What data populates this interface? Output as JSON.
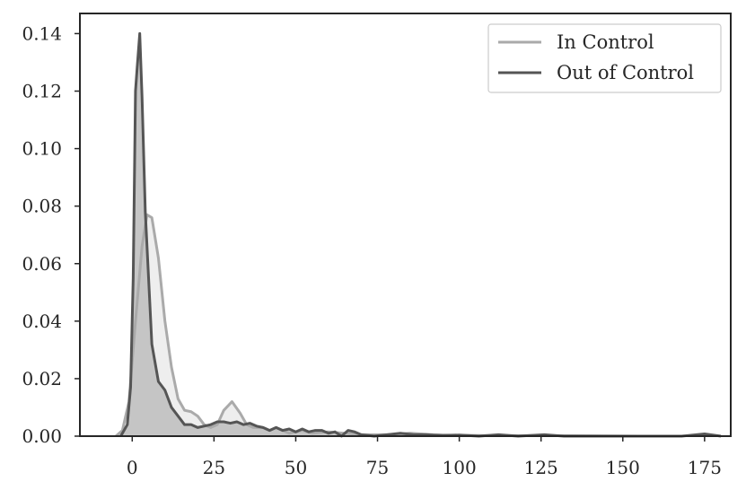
{
  "chart_data": {
    "type": "area",
    "title": "",
    "xlabel": "",
    "ylabel": "",
    "xlim": [
      -16,
      183
    ],
    "ylim": [
      0,
      0.147
    ],
    "x_ticks": [
      0,
      25,
      50,
      75,
      100,
      125,
      150,
      175
    ],
    "x_tick_labels": [
      "0",
      "25",
      "50",
      "75",
      "100",
      "125",
      "150",
      "175"
    ],
    "y_ticks": [
      0.0,
      0.02,
      0.04,
      0.06,
      0.08,
      0.1,
      0.12,
      0.14
    ],
    "y_tick_labels": [
      "0.00",
      "0.02",
      "0.04",
      "0.06",
      "0.08",
      "0.10",
      "0.12",
      "0.14"
    ],
    "grid": false,
    "legend_position": "top-right",
    "series": [
      {
        "name": "In Control",
        "color": "#aaaaaa",
        "fill": "#ebebeb",
        "points": [
          [
            -5,
            0.0
          ],
          [
            -3,
            0.002
          ],
          [
            -1,
            0.012
          ],
          [
            1,
            0.04
          ],
          [
            3,
            0.066
          ],
          [
            4.5,
            0.077
          ],
          [
            6,
            0.076
          ],
          [
            8,
            0.062
          ],
          [
            10,
            0.04
          ],
          [
            12,
            0.024
          ],
          [
            14,
            0.013
          ],
          [
            16,
            0.009
          ],
          [
            18,
            0.0085
          ],
          [
            20,
            0.007
          ],
          [
            22,
            0.004
          ],
          [
            24,
            0.003
          ],
          [
            26,
            0.004
          ],
          [
            28,
            0.009
          ],
          [
            30.5,
            0.012
          ],
          [
            33,
            0.008
          ],
          [
            35,
            0.004
          ],
          [
            37,
            0.003
          ],
          [
            40,
            0.003
          ],
          [
            42,
            0.002
          ],
          [
            44,
            0.003
          ],
          [
            46,
            0.002
          ],
          [
            48,
            0.001
          ],
          [
            52,
            0.002
          ],
          [
            55,
            0.001
          ],
          [
            60,
            0.0015
          ],
          [
            65,
            0.001
          ],
          [
            70,
            0.0005
          ],
          [
            78,
            0.0005
          ],
          [
            85,
            0.001
          ],
          [
            92,
            0.0005
          ],
          [
            100,
            0.0003
          ],
          [
            110,
            0.0002
          ],
          [
            125,
            0.0002
          ],
          [
            140,
            0.0001
          ],
          [
            155,
            0.0
          ],
          [
            165,
            0.0
          ]
        ]
      },
      {
        "name": "Out of Control",
        "color": "#555555",
        "fill": "#c0c0c0",
        "points": [
          [
            -3.5,
            0.0
          ],
          [
            -1.5,
            0.004
          ],
          [
            -0.5,
            0.017
          ],
          [
            0.3,
            0.055
          ],
          [
            1,
            0.12
          ],
          [
            1.5,
            0.128
          ],
          [
            2.3,
            0.14
          ],
          [
            3,
            0.118
          ],
          [
            4,
            0.078
          ],
          [
            5,
            0.055
          ],
          [
            6,
            0.032
          ],
          [
            8,
            0.019
          ],
          [
            10,
            0.016
          ],
          [
            12,
            0.01
          ],
          [
            14,
            0.007
          ],
          [
            16,
            0.004
          ],
          [
            18,
            0.004
          ],
          [
            20,
            0.003
          ],
          [
            22,
            0.0035
          ],
          [
            24,
            0.004
          ],
          [
            26,
            0.005
          ],
          [
            28,
            0.005
          ],
          [
            30,
            0.0045
          ],
          [
            32,
            0.005
          ],
          [
            34,
            0.004
          ],
          [
            36,
            0.0045
          ],
          [
            38,
            0.0035
          ],
          [
            40,
            0.003
          ],
          [
            42,
            0.002
          ],
          [
            44,
            0.003
          ],
          [
            46,
            0.002
          ],
          [
            48,
            0.0025
          ],
          [
            50,
            0.0015
          ],
          [
            52,
            0.0025
          ],
          [
            54,
            0.0015
          ],
          [
            56,
            0.002
          ],
          [
            58,
            0.002
          ],
          [
            60,
            0.001
          ],
          [
            62,
            0.0015
          ],
          [
            64,
            0.0
          ],
          [
            66,
            0.002
          ],
          [
            68,
            0.0015
          ],
          [
            70,
            0.0005
          ],
          [
            74,
            0.0
          ],
          [
            78,
            0.0005
          ],
          [
            82,
            0.001
          ],
          [
            86,
            0.0005
          ],
          [
            90,
            0.0005
          ],
          [
            95,
            0.0002
          ],
          [
            100,
            0.0004
          ],
          [
            106,
            0.0
          ],
          [
            112,
            0.0005
          ],
          [
            118,
            0.0
          ],
          [
            126,
            0.0005
          ],
          [
            132,
            0.0
          ],
          [
            150,
            0.0
          ],
          [
            168,
            0.0
          ],
          [
            175,
            0.0008
          ],
          [
            180,
            0.0
          ]
        ]
      }
    ]
  }
}
